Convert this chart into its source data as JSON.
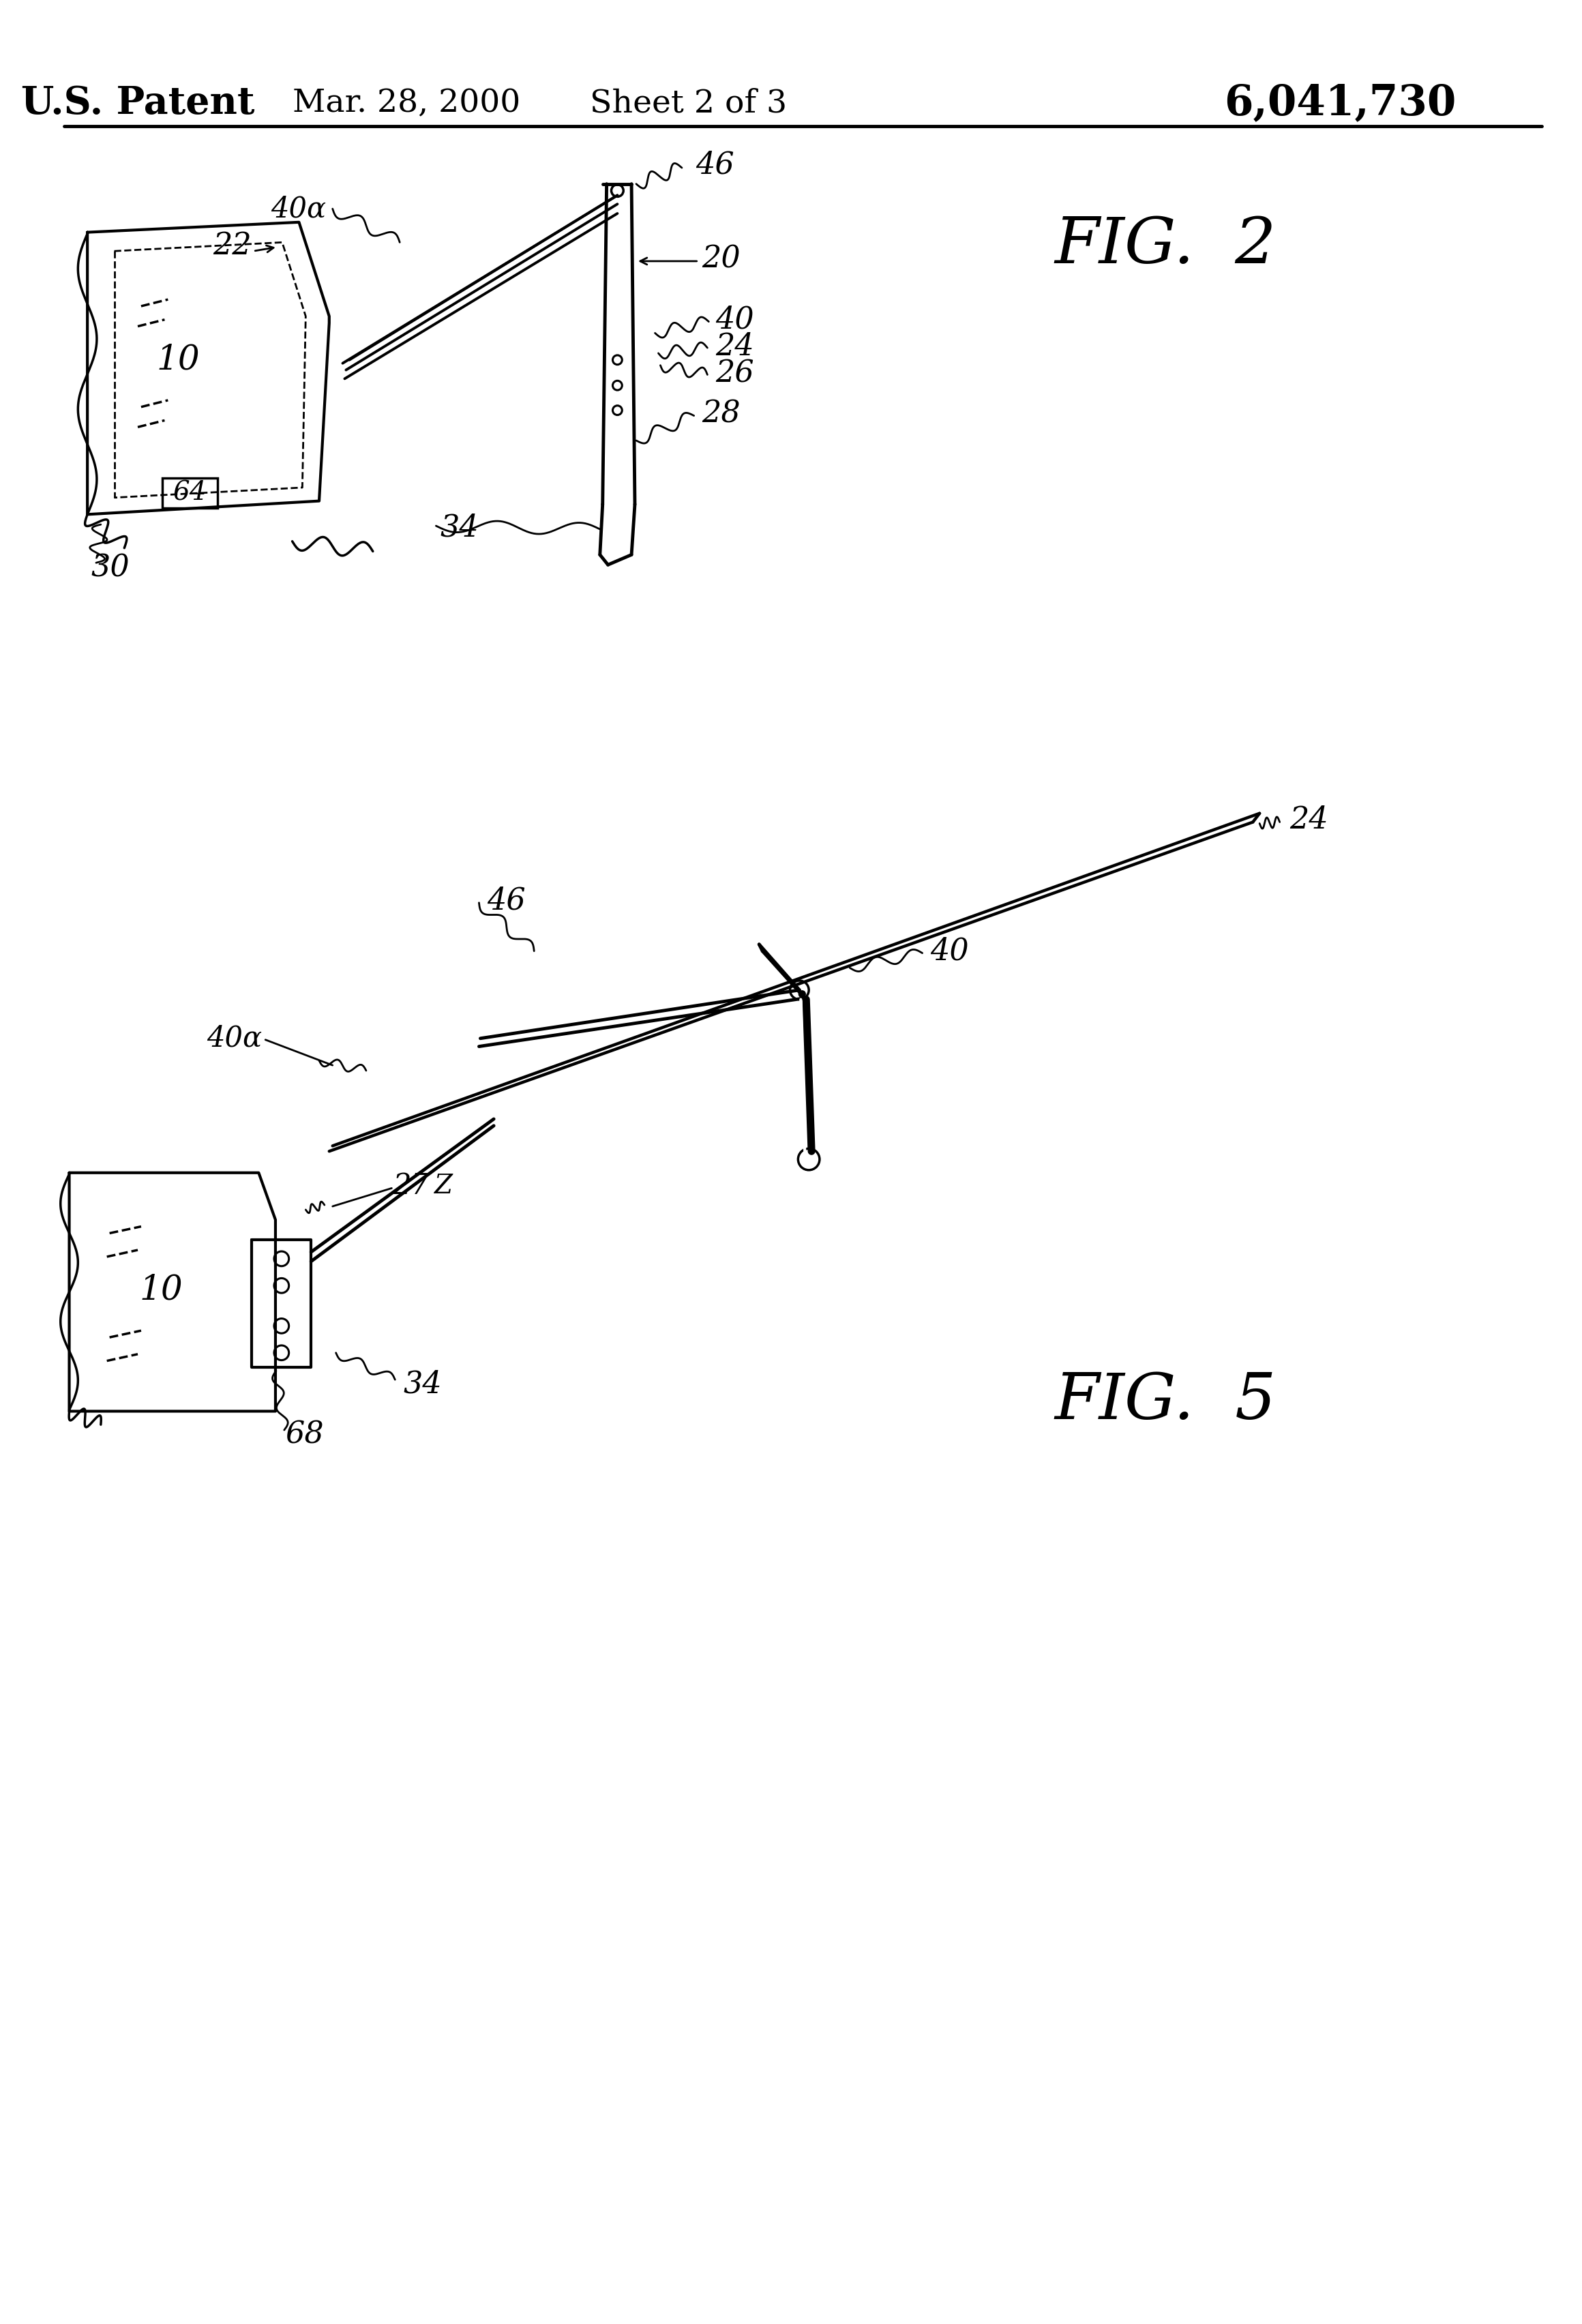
{
  "bg_color": "#ffffff",
  "title_patent": "U.S. Patent",
  "title_date": "Mar. 28, 2000",
  "title_sheet": "Sheet 2 of 3",
  "title_number": "6,041,730",
  "fig2_label": "FIG.  2",
  "fig5_label": "FIG.  5",
  "text_color": "#000000",
  "line_color": "#000000"
}
